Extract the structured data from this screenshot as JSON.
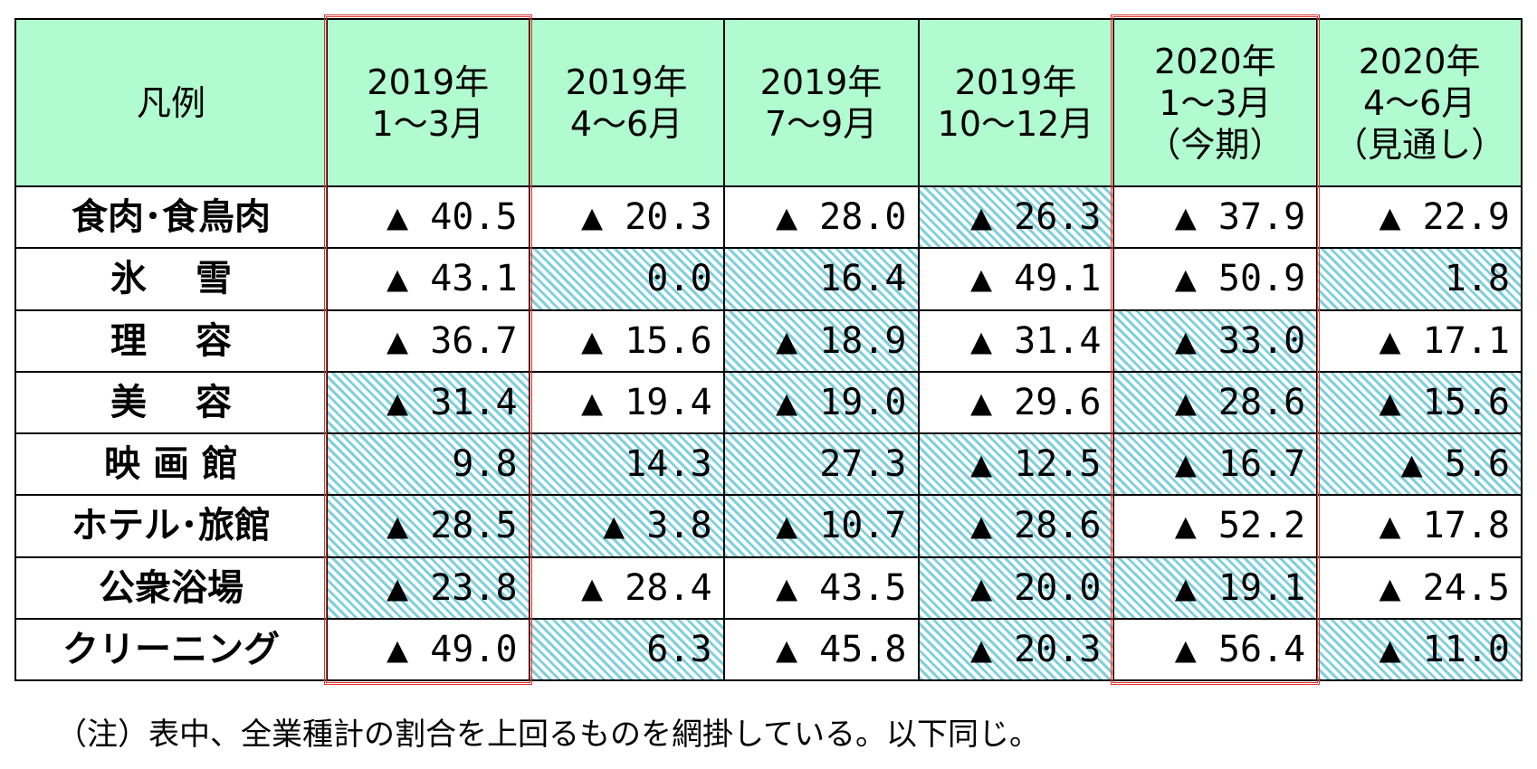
{
  "chart_data": {
    "type": "table",
    "header_label": "凡例",
    "columns": [
      {
        "lines": [
          "2019年",
          "1～3月"
        ]
      },
      {
        "lines": [
          "2019年",
          "4～6月"
        ]
      },
      {
        "lines": [
          "2019年",
          "7～9月"
        ]
      },
      {
        "lines": [
          "2019年",
          "10～12月"
        ]
      },
      {
        "lines": [
          "2020年",
          "1～3月",
          "（今期）"
        ]
      },
      {
        "lines": [
          "2020年",
          "4～6月",
          "（見通し）"
        ]
      }
    ],
    "rows": [
      {
        "label": "食肉･食鳥肉",
        "values": [
          "▲ 40.5",
          "▲ 20.3",
          "▲ 28.0",
          "▲ 26.3",
          "▲ 37.9",
          "▲ 22.9"
        ],
        "highlighted": [
          false,
          false,
          false,
          true,
          false,
          false
        ]
      },
      {
        "label": "氷　 雪",
        "values": [
          "▲ 43.1",
          "0.0",
          "16.4",
          "▲ 49.1",
          "▲ 50.9",
          "1.8"
        ],
        "highlighted": [
          false,
          true,
          true,
          false,
          false,
          true
        ]
      },
      {
        "label": "理　 容",
        "values": [
          "▲ 36.7",
          "▲ 15.6",
          "▲ 18.9",
          "▲ 31.4",
          "▲ 33.0",
          "▲ 17.1"
        ],
        "highlighted": [
          false,
          false,
          true,
          false,
          true,
          false
        ]
      },
      {
        "label": "美　 容",
        "values": [
          "▲ 31.4",
          "▲ 19.4",
          "▲ 19.0",
          "▲ 29.6",
          "▲ 28.6",
          "▲ 15.6"
        ],
        "highlighted": [
          true,
          false,
          true,
          false,
          true,
          true
        ]
      },
      {
        "label": "映 画 館",
        "values": [
          "9.8",
          "14.3",
          "27.3",
          "▲ 12.5",
          "▲ 16.7",
          "▲ 5.6"
        ],
        "highlighted": [
          true,
          true,
          true,
          true,
          true,
          true
        ]
      },
      {
        "label": "ホテル･旅館",
        "values": [
          "▲ 28.5",
          "▲ 3.8",
          "▲ 10.7",
          "▲ 28.6",
          "▲ 52.2",
          "▲ 17.8"
        ],
        "highlighted": [
          true,
          true,
          true,
          true,
          false,
          false
        ]
      },
      {
        "label": "公衆浴場",
        "values": [
          "▲ 23.8",
          "▲ 28.4",
          "▲ 43.5",
          "▲ 20.0",
          "▲ 19.1",
          "▲ 24.5"
        ],
        "highlighted": [
          true,
          false,
          false,
          true,
          true,
          false
        ]
      },
      {
        "label": "クリーニング",
        "values": [
          "▲ 49.0",
          "6.3",
          "▲ 45.8",
          "▲ 20.3",
          "▲ 56.4",
          "▲ 11.0"
        ],
        "highlighted": [
          false,
          true,
          false,
          true,
          false,
          true
        ]
      }
    ],
    "outlined_columns": [
      0,
      4
    ],
    "colors": {
      "header_bg": "#b1fbd0",
      "hatch": "#7fd0dc",
      "outline": "#e0312b"
    }
  },
  "note": "（注）表中、全業種計の割合を上回るものを網掛している。以下同じ。"
}
